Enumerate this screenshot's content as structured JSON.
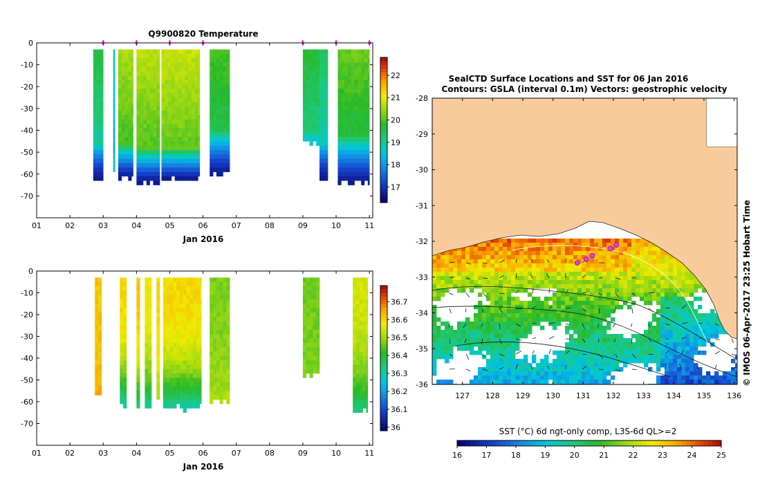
{
  "chart_data": [
    {
      "type": "heatmap",
      "title": "Q9900820  Temperature",
      "xlabel": "Jan 2016",
      "x_ticks": [
        "01",
        "02",
        "03",
        "04",
        "05",
        "06",
        "07",
        "08",
        "09",
        "10",
        "11"
      ],
      "xlim": [
        1,
        11.1
      ],
      "ylim": [
        -80,
        0
      ],
      "y_ticks": [
        0,
        -10,
        -20,
        -30,
        -40,
        -50,
        -60,
        -70
      ],
      "colorbar": {
        "range": [
          16.3,
          22.8
        ],
        "ticks": [
          17,
          18,
          19,
          20,
          21,
          22
        ]
      },
      "profile_markers": [
        3.0,
        4.0,
        5.0,
        6.0,
        9.0,
        10.0,
        11.0
      ],
      "profiles": [
        {
          "x0": 2.7,
          "x1": 3.0,
          "top": -3,
          "bottom": -60,
          "surface": 19.6,
          "deep": 16.6,
          "break": -45
        },
        {
          "x0": 3.3,
          "x1": 3.35,
          "top": -3,
          "bottom": -56,
          "surface": 18.8,
          "deep": 18.4,
          "break": -50
        },
        {
          "x0": 3.45,
          "x1": 3.9,
          "top": -3,
          "bottom": -60,
          "surface": 20.6,
          "deep": 16.6,
          "break": -45
        },
        {
          "x0": 4.0,
          "x1": 4.7,
          "top": -3,
          "bottom": -62,
          "surface": 20.7,
          "deep": 16.6,
          "break": -47
        },
        {
          "x0": 4.75,
          "x1": 5.9,
          "top": -3,
          "bottom": -61,
          "surface": 20.8,
          "deep": 16.6,
          "break": -47
        },
        {
          "x0": 6.2,
          "x1": 6.8,
          "top": -3,
          "bottom": -58,
          "surface": 20.0,
          "deep": 16.6,
          "break": -40
        },
        {
          "x0": 9.0,
          "x1": 9.5,
          "top": -3,
          "bottom": -44,
          "surface": 19.7,
          "deep": 18.5,
          "break": -40
        },
        {
          "x0": 9.5,
          "x1": 9.75,
          "top": -3,
          "bottom": -60,
          "surface": 19.4,
          "deep": 16.6,
          "break": -45
        },
        {
          "x0": 10.05,
          "x1": 11.0,
          "top": -3,
          "bottom": -62,
          "surface": 20.2,
          "deep": 16.6,
          "break": -42
        }
      ]
    },
    {
      "type": "heatmap",
      "title": "",
      "xlabel": "Jan 2016",
      "x_ticks": [
        "01",
        "02",
        "03",
        "04",
        "05",
        "06",
        "07",
        "08",
        "09",
        "10",
        "11"
      ],
      "xlim": [
        1,
        11.1
      ],
      "ylim": [
        -80,
        0
      ],
      "y_ticks": [
        0,
        -10,
        -20,
        -30,
        -40,
        -50,
        -60,
        -70
      ],
      "colorbar": {
        "range": [
          35.98,
          36.79
        ],
        "ticks": [
          36,
          36.1,
          36.2,
          36.3,
          36.4,
          36.5,
          36.6,
          36.7
        ]
      },
      "profiles": [
        {
          "x0": 2.75,
          "x1": 2.95,
          "top": -3,
          "bottom": -55,
          "surface": 36.62,
          "deep": 36.65
        },
        {
          "x0": 3.5,
          "x1": 3.7,
          "top": -3,
          "bottom": -60,
          "surface": 36.6,
          "deep": 36.3
        },
        {
          "x0": 4.0,
          "x1": 4.1,
          "top": -3,
          "bottom": -60,
          "surface": 36.62,
          "deep": 36.35
        },
        {
          "x0": 4.25,
          "x1": 4.45,
          "top": -3,
          "bottom": -62,
          "surface": 36.58,
          "deep": 36.3
        },
        {
          "x0": 4.6,
          "x1": 4.7,
          "top": -3,
          "bottom": -58,
          "surface": 36.6,
          "deep": 36.5
        },
        {
          "x0": 4.8,
          "x1": 5.95,
          "top": -3,
          "bottom": -61,
          "surface": 36.6,
          "deep": 36.3
        },
        {
          "x0": 6.2,
          "x1": 6.8,
          "top": -3,
          "bottom": -58,
          "surface": 36.48,
          "deep": 36.52
        },
        {
          "x0": 9.0,
          "x1": 9.5,
          "top": -3,
          "bottom": -45,
          "surface": 36.47,
          "deep": 36.48
        },
        {
          "x0": 10.5,
          "x1": 10.95,
          "top": -3,
          "bottom": -62,
          "surface": 36.55,
          "deep": 36.35
        }
      ]
    },
    {
      "type": "map",
      "title": "SealCTD Surface Locations and SST for 06 Jan 2016",
      "subtitle": "Contours: GSLA (interval 0.1m) Vectors: geostrophic velocity",
      "x_ticks": [
        "127",
        "128",
        "129",
        "130",
        "131",
        "132",
        "133",
        "134",
        "135",
        "136"
      ],
      "y_ticks": [
        "-28",
        "-29",
        "-30",
        "-31",
        "-32",
        "-33",
        "-34",
        "-35",
        "-36"
      ],
      "xlim": [
        126,
        136.1
      ],
      "ylim": [
        -36,
        -28
      ],
      "colorbar": {
        "label": "SST (°C) 6d ngt-only comp, L3S-6d QL>=2",
        "range": [
          16,
          25
        ],
        "ticks": [
          "16",
          "17",
          "18",
          "19",
          "20",
          "21",
          "22",
          "23",
          "24",
          "25"
        ]
      },
      "seal_locations": [
        {
          "lon": 130.8,
          "lat": -32.6
        },
        {
          "lon": 131.1,
          "lat": -32.5
        },
        {
          "lon": 131.3,
          "lat": -32.4
        },
        {
          "lon": 131.9,
          "lat": -32.2
        },
        {
          "lon": 132.1,
          "lat": -32.1
        }
      ],
      "side_label": "© IMOS 06-Apr-2017 23:25 Hobart Time"
    }
  ]
}
